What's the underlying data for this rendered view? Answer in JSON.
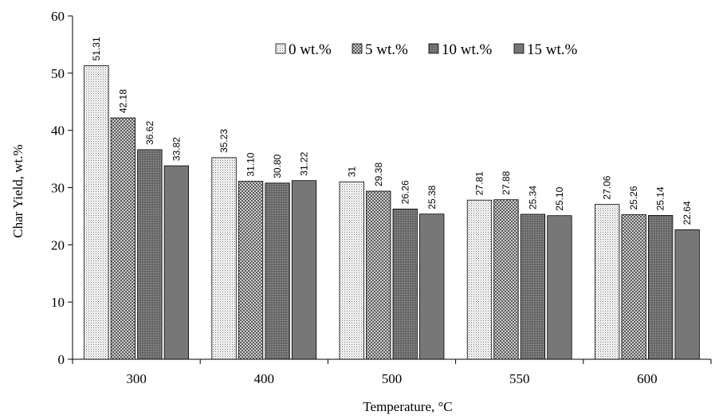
{
  "chart_data": {
    "type": "bar",
    "title": "",
    "xlabel": "Temperature,  °C",
    "ylabel": "Char Yield,  wt.%",
    "ylim": [
      0,
      60
    ],
    "yticks": [
      0,
      10,
      20,
      30,
      40,
      50,
      60
    ],
    "grid": false,
    "legend_position": "top-right",
    "categories": [
      "300",
      "400",
      "500",
      "550",
      "600"
    ],
    "series": [
      {
        "name": "0 wt.%",
        "fill": "dots-fine",
        "values": [
          51.31,
          35.23,
          31,
          27.81,
          27.06
        ],
        "labels": [
          "51.31",
          "35.23",
          "31",
          "27.81",
          "27.06"
        ]
      },
      {
        "name": "5 wt.%",
        "fill": "crosshatch",
        "values": [
          42.18,
          31.1,
          29.38,
          27.88,
          25.26
        ],
        "labels": [
          "42.18",
          "31.10",
          "29.38",
          "27.88",
          "25.26"
        ]
      },
      {
        "name": "10 wt.%",
        "fill": "dots-dark",
        "values": [
          36.62,
          30.8,
          26.26,
          25.34,
          25.14
        ],
        "labels": [
          "36.62",
          "30.80",
          "26.26",
          "25.34",
          "25.14"
        ]
      },
      {
        "name": "15 wt.%",
        "fill": "solid-gray",
        "values": [
          33.82,
          31.22,
          25.38,
          25.1,
          22.64
        ],
        "labels": [
          "33.82",
          "31.22",
          "25.38",
          "25.10",
          "22.64"
        ]
      }
    ],
    "colors": {
      "axis": "#000000",
      "bar_border": "#000000",
      "solid_fill": "#777777"
    }
  }
}
